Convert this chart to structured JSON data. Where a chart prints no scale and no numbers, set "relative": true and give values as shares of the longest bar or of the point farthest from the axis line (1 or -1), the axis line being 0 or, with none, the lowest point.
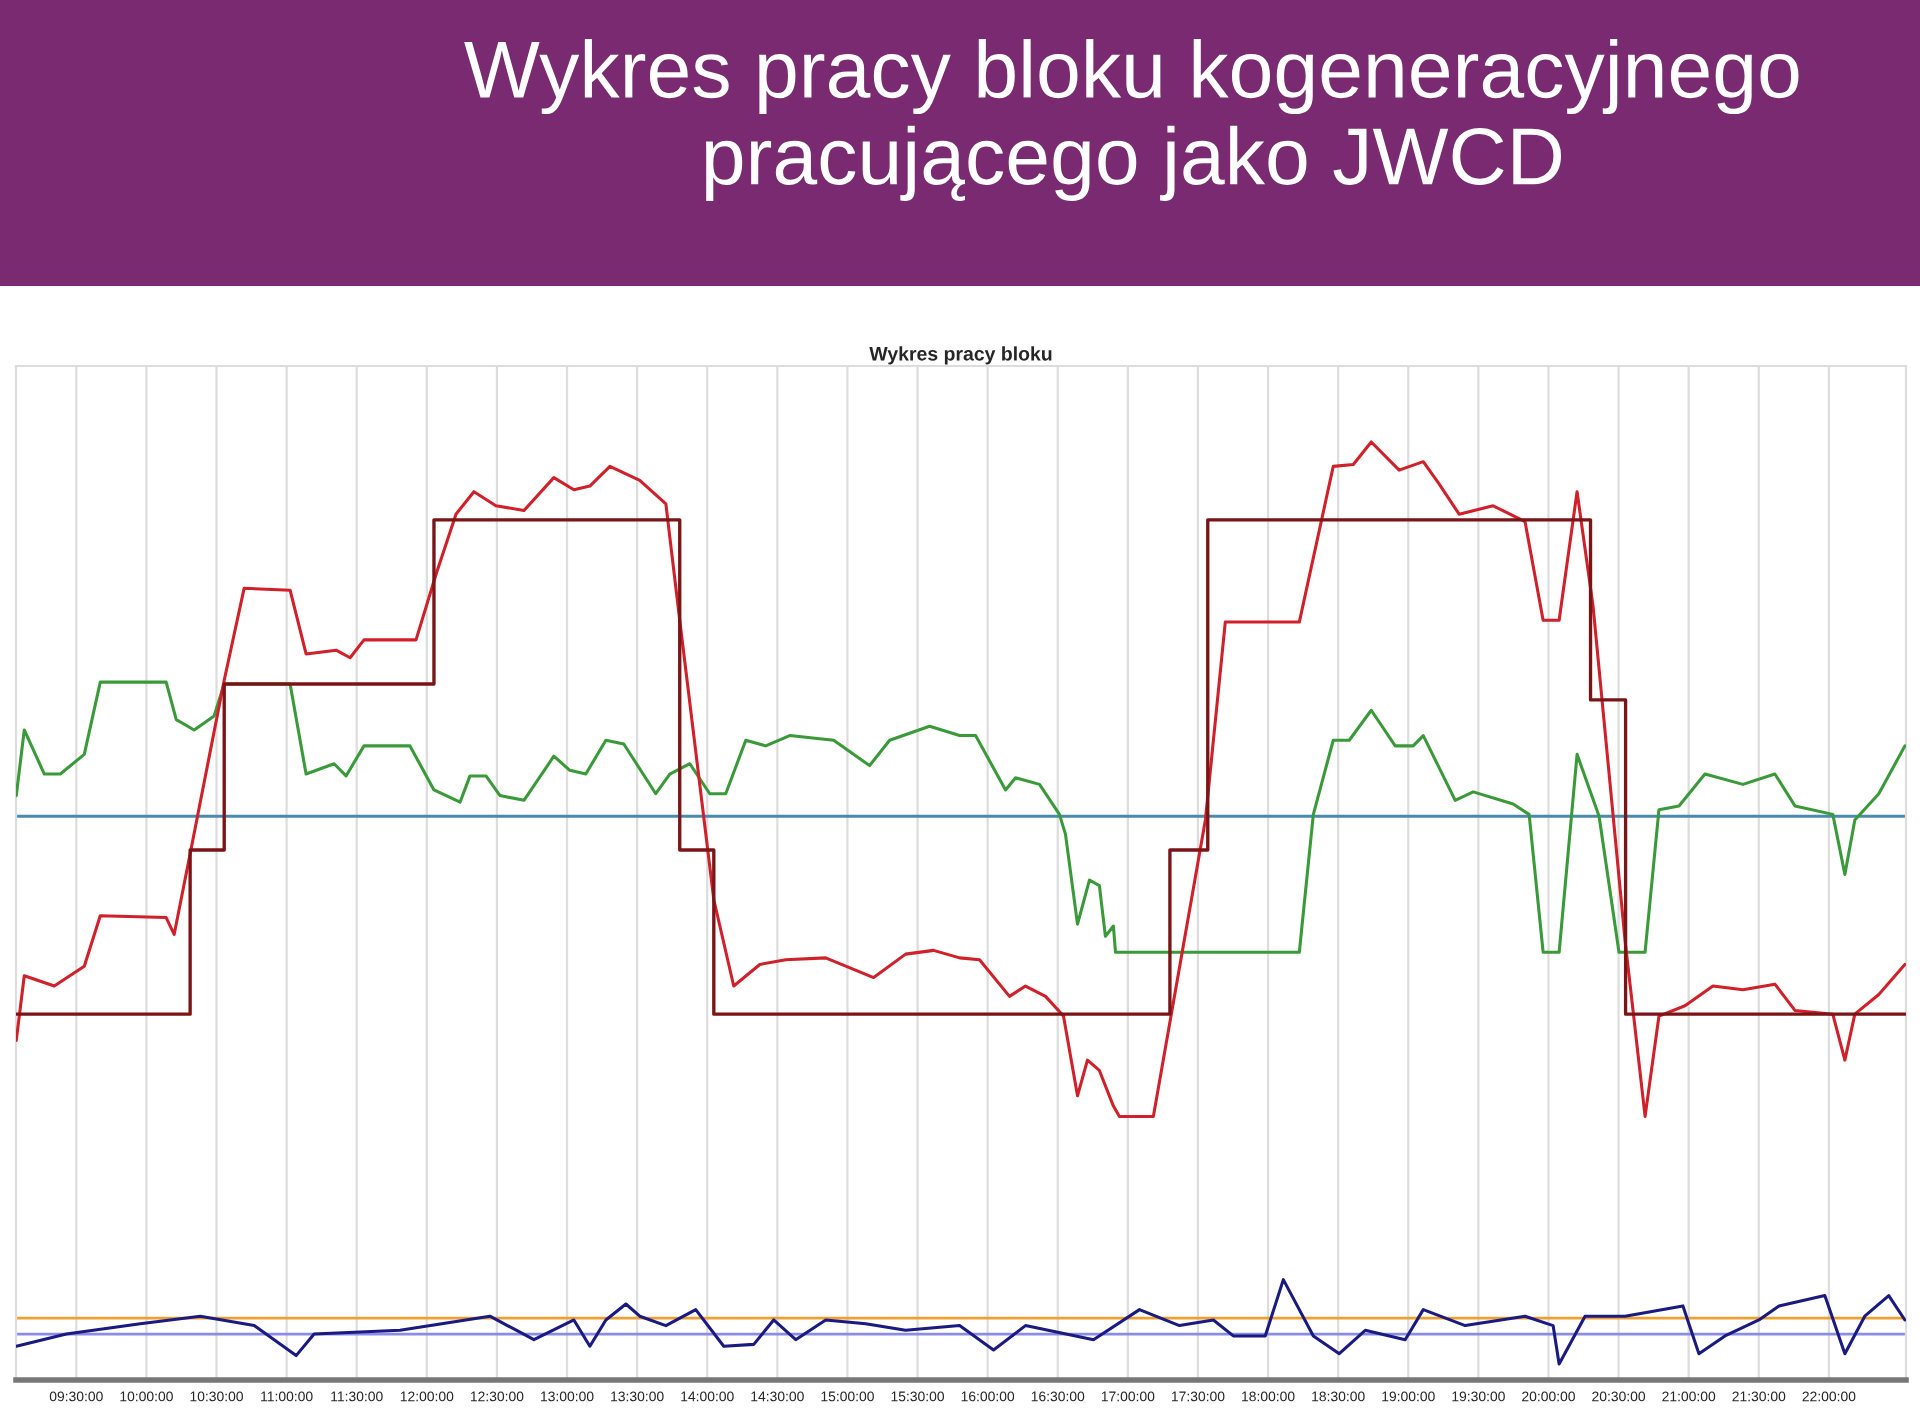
{
  "chart_data": {
    "type": "line",
    "title": "Wykres pracy bloku kogeneracyjnego pracującego jako JWCD",
    "subtitle": "Wykres pracy bloku",
    "relative": true,
    "grid": "x",
    "legend": false,
    "marker": "none",
    "line_style": "solid",
    "xlim": [
      9.07,
      22.55
    ],
    "xticks": [
      {
        "value": 9.5,
        "label": "09:30:00"
      },
      {
        "value": 10.0,
        "label": "10:00:00"
      },
      {
        "value": 10.5,
        "label": "10:30:00"
      },
      {
        "value": 11.0,
        "label": "11:00:00"
      },
      {
        "value": 11.5,
        "label": "11:30:00"
      },
      {
        "value": 12.0,
        "label": "12:00:00"
      },
      {
        "value": 12.5,
        "label": "12:30:00"
      },
      {
        "value": 13.0,
        "label": "13:00:00"
      },
      {
        "value": 13.5,
        "label": "13:30:00"
      },
      {
        "value": 14.0,
        "label": "14:00:00"
      },
      {
        "value": 14.5,
        "label": "14:30:00"
      },
      {
        "value": 15.0,
        "label": "15:00:00"
      },
      {
        "value": 15.5,
        "label": "15:30:00"
      },
      {
        "value": 16.0,
        "label": "16:00:00"
      },
      {
        "value": 16.5,
        "label": "16:30:00"
      },
      {
        "value": 17.0,
        "label": "17:00:00"
      },
      {
        "value": 17.5,
        "label": "17:30:00"
      },
      {
        "value": 18.0,
        "label": "18:00:00"
      },
      {
        "value": 18.5,
        "label": "18:30:00"
      },
      {
        "value": 19.0,
        "label": "19:00:00"
      },
      {
        "value": 19.5,
        "label": "19:30:00"
      },
      {
        "value": 20.0,
        "label": "20:00:00"
      },
      {
        "value": 20.5,
        "label": "20:30:00"
      },
      {
        "value": 21.0,
        "label": "21:00:00"
      },
      {
        "value": 21.5,
        "label": "21:30:00"
      },
      {
        "value": 22.0,
        "label": "22:00:00"
      }
    ],
    "ref_lines": [
      {
        "axis": "y",
        "value": 0.601,
        "color": "#4a8ab0"
      },
      {
        "axis": "y",
        "value": 0.066,
        "color": "#f0a030"
      },
      {
        "axis": "y",
        "value": 0.049,
        "color": "#8c8ce8"
      }
    ],
    "series": [
      {
        "color": "#3a9a3a",
        "x": [
          9.072,
          9.129,
          9.272,
          9.386,
          9.557,
          9.671,
          10.141,
          10.213,
          10.341,
          10.483,
          10.555,
          11.025,
          11.139,
          11.339,
          11.424,
          11.552,
          11.88,
          12.051,
          12.237,
          12.308,
          12.422,
          12.522,
          12.693,
          12.906,
          13.02,
          13.134,
          13.277,
          13.405,
          13.633,
          13.733,
          13.876,
          14.018,
          14.132,
          14.275,
          14.417,
          14.588,
          14.902,
          15.158,
          15.301,
          15.586,
          15.8,
          15.914,
          16.128,
          16.199,
          16.37,
          16.512,
          16.555,
          16.641,
          16.726,
          16.797,
          16.84,
          16.897,
          16.912,
          18.223,
          18.323,
          18.465,
          18.579,
          18.736,
          18.907,
          19.035,
          19.107,
          19.335,
          19.463,
          19.748,
          19.862,
          19.962,
          20.076,
          20.204,
          20.361,
          20.503,
          20.689,
          20.788,
          20.931,
          21.116,
          21.387,
          21.615,
          21.758,
          22.028,
          22.114,
          22.185,
          22.356,
          22.542
        ],
        "values": [
          0.623,
          0.693,
          0.646,
          0.646,
          0.667,
          0.744,
          0.744,
          0.704,
          0.693,
          0.708,
          0.742,
          0.742,
          0.646,
          0.657,
          0.644,
          0.676,
          0.676,
          0.629,
          0.616,
          0.644,
          0.644,
          0.623,
          0.618,
          0.665,
          0.65,
          0.646,
          0.682,
          0.678,
          0.625,
          0.646,
          0.657,
          0.625,
          0.625,
          0.682,
          0.676,
          0.687,
          0.682,
          0.655,
          0.682,
          0.697,
          0.687,
          0.687,
          0.629,
          0.642,
          0.635,
          0.603,
          0.582,
          0.486,
          0.533,
          0.527,
          0.473,
          0.484,
          0.456,
          0.456,
          0.603,
          0.682,
          0.682,
          0.714,
          0.676,
          0.676,
          0.687,
          0.618,
          0.627,
          0.614,
          0.603,
          0.456,
          0.456,
          0.667,
          0.601,
          0.456,
          0.456,
          0.608,
          0.612,
          0.646,
          0.635,
          0.646,
          0.612,
          0.603,
          0.539,
          0.597,
          0.625,
          0.676
        ]
      },
      {
        "color": "#d0202a",
        "x": [
          9.072,
          9.129,
          9.343,
          9.557,
          9.671,
          10.141,
          10.198,
          10.312,
          10.555,
          10.697,
          11.025,
          11.139,
          11.353,
          11.453,
          11.552,
          11.923,
          12.066,
          12.208,
          12.336,
          12.493,
          12.693,
          12.906,
          13.049,
          13.163,
          13.306,
          13.519,
          13.705,
          13.804,
          14.047,
          14.189,
          14.375,
          14.56,
          14.845,
          15.187,
          15.415,
          15.614,
          15.8,
          15.942,
          16.156,
          16.27,
          16.413,
          16.541,
          16.641,
          16.712,
          16.797,
          16.897,
          16.94,
          17.182,
          17.553,
          17.695,
          18.223,
          18.465,
          18.608,
          18.736,
          18.935,
          19.107,
          19.221,
          19.363,
          19.605,
          19.833,
          19.962,
          20.076,
          20.204,
          20.318,
          20.546,
          20.689,
          20.788,
          20.974,
          21.173,
          21.387,
          21.615,
          21.758,
          22.028,
          22.114,
          22.185,
          22.356,
          22.542
        ],
        "values": [
          0.362,
          0.431,
          0.42,
          0.441,
          0.495,
          0.493,
          0.475,
          0.561,
          0.746,
          0.844,
          0.842,
          0.774,
          0.778,
          0.77,
          0.789,
          0.789,
          0.859,
          0.923,
          0.947,
          0.932,
          0.927,
          0.962,
          0.949,
          0.953,
          0.974,
          0.959,
          0.934,
          0.81,
          0.512,
          0.42,
          0.443,
          0.448,
          0.45,
          0.429,
          0.454,
          0.458,
          0.45,
          0.448,
          0.409,
          0.42,
          0.409,
          0.388,
          0.303,
          0.341,
          0.33,
          0.292,
          0.281,
          0.281,
          0.597,
          0.808,
          0.808,
          0.974,
          0.976,
          1.0,
          0.97,
          0.979,
          0.955,
          0.923,
          0.932,
          0.915,
          0.81,
          0.81,
          0.947,
          0.825,
          0.469,
          0.281,
          0.388,
          0.399,
          0.42,
          0.416,
          0.422,
          0.394,
          0.39,
          0.341,
          0.39,
          0.411,
          0.443
        ]
      },
      {
        "type": "step",
        "color": "#7b1416",
        "x": [
          9.072,
          10.312,
          10.555,
          12.051,
          13.804,
          14.047,
          17.3,
          17.57,
          20.3,
          20.55,
          22.542
        ],
        "values": [
          0.39,
          0.565,
          0.742,
          0.917,
          0.565,
          0.39,
          0.565,
          0.917,
          0.725,
          0.39,
          0.39
        ]
      },
      {
        "color": "#1a1a80",
        "x": [
          9.072,
          9.429,
          9.956,
          10.384,
          10.769,
          11.068,
          11.196,
          11.809,
          12.45,
          12.764,
          13.049,
          13.163,
          13.277,
          13.42,
          13.519,
          13.705,
          13.918,
          14.118,
          14.332,
          14.474,
          14.631,
          14.845,
          15.13,
          15.415,
          15.8,
          16.042,
          16.27,
          16.755,
          17.083,
          17.368,
          17.61,
          17.752,
          17.98,
          18.109,
          18.323,
          18.508,
          18.693,
          18.978,
          19.107,
          19.406,
          19.833,
          20.033,
          20.076,
          20.261,
          20.546,
          20.959,
          21.073,
          21.259,
          21.501,
          21.644,
          21.971,
          22.114,
          22.256,
          22.427,
          22.542
        ],
        "values": [
          0.036,
          0.049,
          0.06,
          0.068,
          0.058,
          0.026,
          0.049,
          0.053,
          0.068,
          0.043,
          0.064,
          0.036,
          0.064,
          0.081,
          0.068,
          0.058,
          0.075,
          0.036,
          0.038,
          0.064,
          0.043,
          0.064,
          0.06,
          0.053,
          0.058,
          0.032,
          0.058,
          0.043,
          0.075,
          0.058,
          0.064,
          0.047,
          0.047,
          0.107,
          0.047,
          0.028,
          0.053,
          0.043,
          0.075,
          0.058,
          0.068,
          0.058,
          0.017,
          0.068,
          0.068,
          0.079,
          0.028,
          0.047,
          0.064,
          0.079,
          0.09,
          0.028,
          0.068,
          0.09,
          0.064
        ]
      }
    ]
  }
}
